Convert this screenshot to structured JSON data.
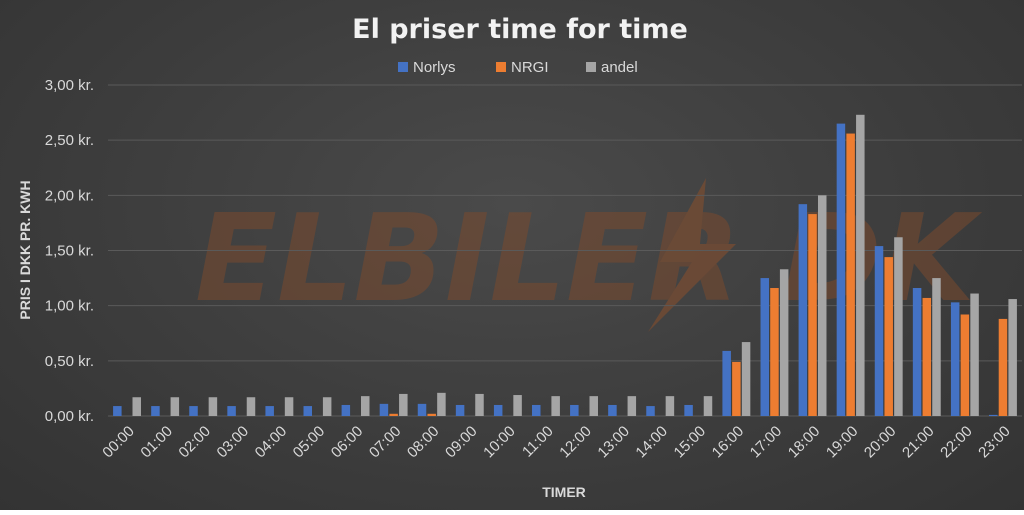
{
  "chart_data": {
    "type": "bar",
    "title": "El priser time for time",
    "xlabel": "TIMER",
    "ylabel": "PRIS I DKK PR. KWH",
    "ylim": [
      0,
      3
    ],
    "yticks": [
      "0,00 kr.",
      "0,50 kr.",
      "1,00 kr.",
      "1,50 kr.",
      "2,00 kr.",
      "2,50 kr.",
      "3,00 kr."
    ],
    "categories": [
      "00:00",
      "01:00",
      "02:00",
      "03:00",
      "04:00",
      "05:00",
      "06:00",
      "07:00",
      "08:00",
      "09:00",
      "10:00",
      "11:00",
      "12:00",
      "13:00",
      "14:00",
      "15:00",
      "16:00",
      "17:00",
      "18:00",
      "19:00",
      "20:00",
      "21:00",
      "22:00",
      "23:00"
    ],
    "series": [
      {
        "name": "Norlys",
        "color": "#4472c4",
        "values": [
          0.09,
          0.09,
          0.09,
          0.09,
          0.09,
          0.09,
          0.1,
          0.11,
          0.11,
          0.1,
          0.1,
          0.1,
          0.1,
          0.1,
          0.09,
          0.1,
          0.59,
          1.25,
          1.92,
          2.65,
          1.54,
          1.16,
          1.03,
          0.01
        ]
      },
      {
        "name": "NRGI",
        "color": "#ed7d31",
        "values": [
          0,
          0,
          0,
          0,
          0,
          0,
          0,
          0.02,
          0.02,
          0,
          0,
          0,
          0,
          0,
          0,
          0,
          0.49,
          1.16,
          1.83,
          2.56,
          1.44,
          1.07,
          0.92,
          0.88
        ]
      },
      {
        "name": "andel",
        "color": "#a5a5a5",
        "values": [
          0.17,
          0.17,
          0.17,
          0.17,
          0.17,
          0.17,
          0.18,
          0.2,
          0.21,
          0.2,
          0.19,
          0.18,
          0.18,
          0.18,
          0.18,
          0.18,
          0.67,
          1.33,
          2.0,
          2.73,
          1.62,
          1.25,
          1.11,
          1.06
        ]
      }
    ],
    "legend_position": "top",
    "grid": true
  },
  "watermark": {
    "text": "ELBILER DK"
  }
}
